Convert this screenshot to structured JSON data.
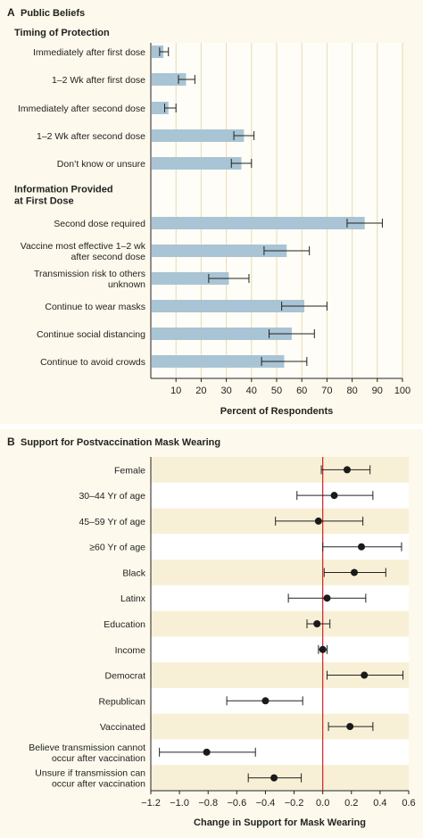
{
  "chart_data": [
    {
      "type": "bar",
      "panel_letter": "A",
      "title": "Public Beliefs",
      "xlabel": "Percent of Respondents",
      "xlim": [
        0,
        100
      ],
      "xticks": [
        "10",
        "20",
        "30",
        "40",
        "50",
        "60",
        "70",
        "80",
        "90",
        "100"
      ],
      "grid": true,
      "bar_color": "#a9c4d4",
      "groups": [
        {
          "heading": [
            "Timing of Protection"
          ],
          "items": [
            {
              "label": [
                "Immediately after first dose"
              ],
              "value": 5,
              "ci": [
                3.5,
                7
              ]
            },
            {
              "label": [
                "1–2 Wk after first dose"
              ],
              "value": 14,
              "ci": [
                11,
                17.5
              ]
            },
            {
              "label": [
                "Immediately after second dose"
              ],
              "value": 7,
              "ci": [
                5.5,
                10
              ]
            },
            {
              "label": [
                "1–2 Wk after second dose"
              ],
              "value": 37,
              "ci": [
                33,
                41
              ]
            },
            {
              "label": [
                "Don’t know or unsure"
              ],
              "value": 36,
              "ci": [
                32,
                40
              ]
            }
          ]
        },
        {
          "heading": [
            "Information Provided",
            "at First Dose"
          ],
          "items": [
            {
              "label": [
                "Second dose required"
              ],
              "value": 85,
              "ci": [
                78,
                92
              ]
            },
            {
              "label": [
                "Vaccine most effective 1–2 wk",
                "after second dose"
              ],
              "value": 54,
              "ci": [
                45,
                63
              ]
            },
            {
              "label": [
                "Transmission risk to others",
                "unknown"
              ],
              "value": 31,
              "ci": [
                23,
                39
              ]
            },
            {
              "label": [
                "Continue to wear masks"
              ],
              "value": 61,
              "ci": [
                52,
                70
              ]
            },
            {
              "label": [
                "Continue social distancing"
              ],
              "value": 56,
              "ci": [
                47,
                65
              ]
            },
            {
              "label": [
                "Continue to avoid crowds"
              ],
              "value": 53,
              "ci": [
                44,
                62
              ]
            }
          ]
        }
      ]
    },
    {
      "type": "scatter",
      "panel_letter": "B",
      "title": "Support for Postvaccination Mask Wearing",
      "xlabel": "Change in Support for Mask Wearing",
      "xlim": [
        -1.2,
        0.6
      ],
      "xticks": [
        "−1.2",
        "−1.0",
        "−0.8",
        "−0.6",
        "−0.4",
        "−0.2",
        "0.0",
        "0.2",
        "0.4",
        "0.6"
      ],
      "reference_line": 0,
      "reference_color": "#d02020",
      "stripe_color": "#f8f0d6",
      "rows": [
        {
          "label": [
            "Female"
          ],
          "value": 0.17,
          "ci": [
            -0.01,
            0.33
          ]
        },
        {
          "label": [
            "30–44 Yr of age"
          ],
          "value": 0.08,
          "ci": [
            -0.18,
            0.35
          ]
        },
        {
          "label": [
            "45–59 Yr of age"
          ],
          "value": -0.03,
          "ci": [
            -0.33,
            0.28
          ]
        },
        {
          "label": [
            "≥60 Yr of age"
          ],
          "value": 0.27,
          "ci": [
            0.0,
            0.55
          ]
        },
        {
          "label": [
            "Black"
          ],
          "value": 0.22,
          "ci": [
            0.01,
            0.44
          ]
        },
        {
          "label": [
            "Latinx"
          ],
          "value": 0.03,
          "ci": [
            -0.24,
            0.3
          ]
        },
        {
          "label": [
            "Education"
          ],
          "value": -0.04,
          "ci": [
            -0.11,
            0.05
          ]
        },
        {
          "label": [
            "Income"
          ],
          "value": 0.0,
          "ci": [
            -0.03,
            0.03
          ]
        },
        {
          "label": [
            "Democrat"
          ],
          "value": 0.29,
          "ci": [
            0.03,
            0.56
          ]
        },
        {
          "label": [
            "Republican"
          ],
          "value": -0.4,
          "ci": [
            -0.67,
            -0.14
          ]
        },
        {
          "label": [
            "Vaccinated"
          ],
          "value": 0.19,
          "ci": [
            0.04,
            0.35
          ]
        },
        {
          "label": [
            "Believe transmission cannot",
            "occur after vaccination"
          ],
          "value": -0.81,
          "ci": [
            -1.14,
            -0.47
          ]
        },
        {
          "label": [
            "Unsure if transmission can",
            "occur after vaccination"
          ],
          "value": -0.34,
          "ci": [
            -0.52,
            -0.15
          ]
        }
      ]
    }
  ]
}
